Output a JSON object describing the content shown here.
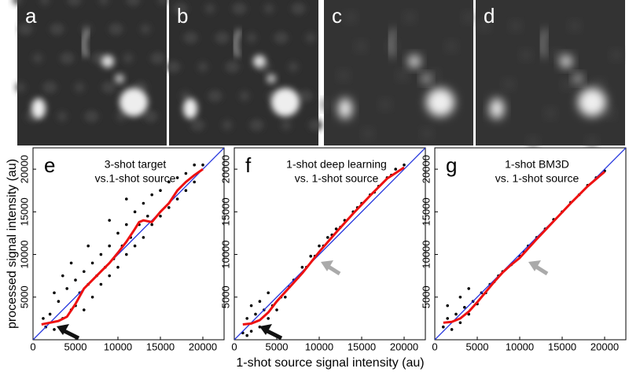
{
  "image_panels": {
    "labels": [
      "a",
      "b",
      "c",
      "d"
    ]
  },
  "x_label": "1-shot source signal intensity (au)",
  "y_label": "processed signal intensity (au)",
  "chart_data": [
    {
      "type": "scatter",
      "label": "e",
      "title": [
        "3-shot target",
        "vs.1-shot source"
      ],
      "xlim": [
        0,
        22500
      ],
      "ylim": [
        0,
        22500
      ],
      "xticks": [
        0,
        5000,
        10000,
        15000,
        20000
      ],
      "yticks": [
        5000,
        10000,
        15000,
        20000
      ],
      "series": [
        {
          "kind": "points",
          "color": "#000000",
          "x": [
            1500,
            2000,
            2500,
            3000,
            3500,
            4000,
            4500,
            5000,
            5000,
            5500,
            6000,
            6000,
            6500,
            7000,
            7000,
            7500,
            8000,
            8000,
            8500,
            9000,
            9000,
            9500,
            10000,
            10000,
            10500,
            11000,
            11000,
            11500,
            12000,
            12000,
            12500,
            13000,
            13000,
            13500,
            14000,
            14000,
            15000,
            15000,
            16000,
            16000,
            17000,
            17000,
            18000,
            18000,
            19000,
            19000,
            20000,
            2500,
            3500,
            1200,
            4500,
            6500,
            11000,
            9000
          ],
          "values": [
            1500,
            3000,
            1200,
            4500,
            2500,
            6000,
            3500,
            7000,
            4000,
            5500,
            8000,
            3500,
            6500,
            9000,
            5000,
            7500,
            10000,
            6500,
            8500,
            11000,
            7500,
            9500,
            12500,
            8500,
            11000,
            13500,
            10000,
            12000,
            15000,
            11000,
            13500,
            16000,
            12000,
            14500,
            17000,
            13500,
            17500,
            14500,
            18500,
            15500,
            19000,
            16500,
            19500,
            17500,
            20500,
            18500,
            20500,
            5500,
            7500,
            2500,
            9000,
            11000,
            16500,
            14000
          ]
        },
        {
          "kind": "line",
          "color": "#2233dd",
          "x": [
            0,
            22500
          ],
          "values": [
            0,
            22500
          ]
        },
        {
          "kind": "line",
          "color": "#ee1111",
          "x": [
            1000,
            2000,
            3000,
            4000,
            5000,
            6000,
            7000,
            8000,
            9000,
            10000,
            11000,
            12000,
            12500,
            13000,
            14000,
            15000,
            16000,
            17000,
            18000,
            19000,
            20000
          ],
          "values": [
            1800,
            2000,
            2200,
            2700,
            4200,
            6000,
            7000,
            8000,
            9000,
            10200,
            11500,
            13000,
            13800,
            14000,
            13800,
            15000,
            16000,
            17500,
            18500,
            19300,
            20000
          ]
        }
      ]
    },
    {
      "type": "scatter",
      "label": "f",
      "title": [
        "1-shot deep learning",
        "vs. 1-shot source"
      ],
      "xlim": [
        0,
        22500
      ],
      "ylim": [
        0,
        22500
      ],
      "xticks": [
        0,
        5000,
        10000,
        15000,
        20000
      ],
      "yticks": [
        5000,
        10000,
        15000,
        20000
      ],
      "series": [
        {
          "kind": "points",
          "color": "#000000",
          "x": [
            1000,
            1500,
            2000,
            2500,
            3000,
            3500,
            4000,
            4500,
            5000,
            5500,
            6000,
            6500,
            7000,
            7500,
            8000,
            8500,
            9000,
            9500,
            10000,
            10500,
            11000,
            11500,
            12000,
            12500,
            13000,
            14000,
            14500,
            15000,
            16000,
            16500,
            17000,
            18000,
            18500,
            19000,
            20000,
            2000,
            3000,
            4000,
            1500
          ],
          "values": [
            800,
            2500,
            1000,
            3000,
            1500,
            3500,
            2500,
            4000,
            3500,
            5000,
            5000,
            6200,
            7000,
            7300,
            8500,
            8500,
            9800,
            9800,
            11000,
            11000,
            12000,
            12300,
            13000,
            13200,
            14000,
            15000,
            15500,
            16000,
            17000,
            17300,
            18000,
            19000,
            19300,
            20000,
            20500,
            4000,
            4500,
            5500,
            500
          ]
        },
        {
          "kind": "line",
          "color": "#2233dd",
          "x": [
            0,
            22500
          ],
          "values": [
            0,
            22500
          ]
        },
        {
          "kind": "line",
          "color": "#ee1111",
          "x": [
            1000,
            2000,
            3000,
            4000,
            5000,
            6000,
            7000,
            8000,
            10000,
            12000,
            14000,
            16000,
            18000,
            20000
          ],
          "values": [
            1800,
            1900,
            2300,
            3200,
            4500,
            5600,
            6700,
            7800,
            10300,
            12600,
            14800,
            16900,
            18900,
            20200
          ]
        }
      ]
    },
    {
      "type": "scatter",
      "label": "g",
      "title": [
        "1-shot BM3D",
        "vs. 1-shot source"
      ],
      "xlim": [
        0,
        22500
      ],
      "ylim": [
        0,
        22500
      ],
      "xticks": [
        0,
        5000,
        10000,
        15000,
        20000
      ],
      "yticks": [
        5000,
        10000,
        15000,
        20000
      ],
      "series": [
        {
          "kind": "points",
          "color": "#000000",
          "x": [
            1000,
            1500,
            2000,
            2500,
            3000,
            3500,
            4000,
            4500,
            5000,
            5500,
            6000,
            6500,
            7000,
            7500,
            8000,
            9000,
            10000,
            10500,
            11000,
            12000,
            13000,
            14000,
            15000,
            16000,
            17000,
            18000,
            19000,
            20000,
            1500,
            3000,
            4000
          ],
          "values": [
            1500,
            2500,
            1200,
            3000,
            2000,
            3800,
            3000,
            4500,
            4200,
            5500,
            5500,
            6500,
            6800,
            7500,
            8000,
            8800,
            9800,
            10300,
            11000,
            12000,
            13000,
            14100,
            15000,
            16100,
            17000,
            18100,
            19000,
            19800,
            4000,
            5000,
            6000
          ]
        },
        {
          "kind": "line",
          "color": "#2233dd",
          "x": [
            0,
            22500
          ],
          "values": [
            0,
            22500
          ]
        },
        {
          "kind": "line",
          "color": "#ee1111",
          "x": [
            1000,
            2000,
            3000,
            4000,
            5000,
            6000,
            7000,
            8000,
            9000,
            10000,
            12000,
            14000,
            16000,
            18000,
            20000
          ],
          "values": [
            2000,
            2100,
            2500,
            3300,
            4400,
            5600,
            6800,
            7900,
            8800,
            9600,
            11800,
            13900,
            16000,
            18000,
            19700
          ]
        }
      ]
    }
  ]
}
